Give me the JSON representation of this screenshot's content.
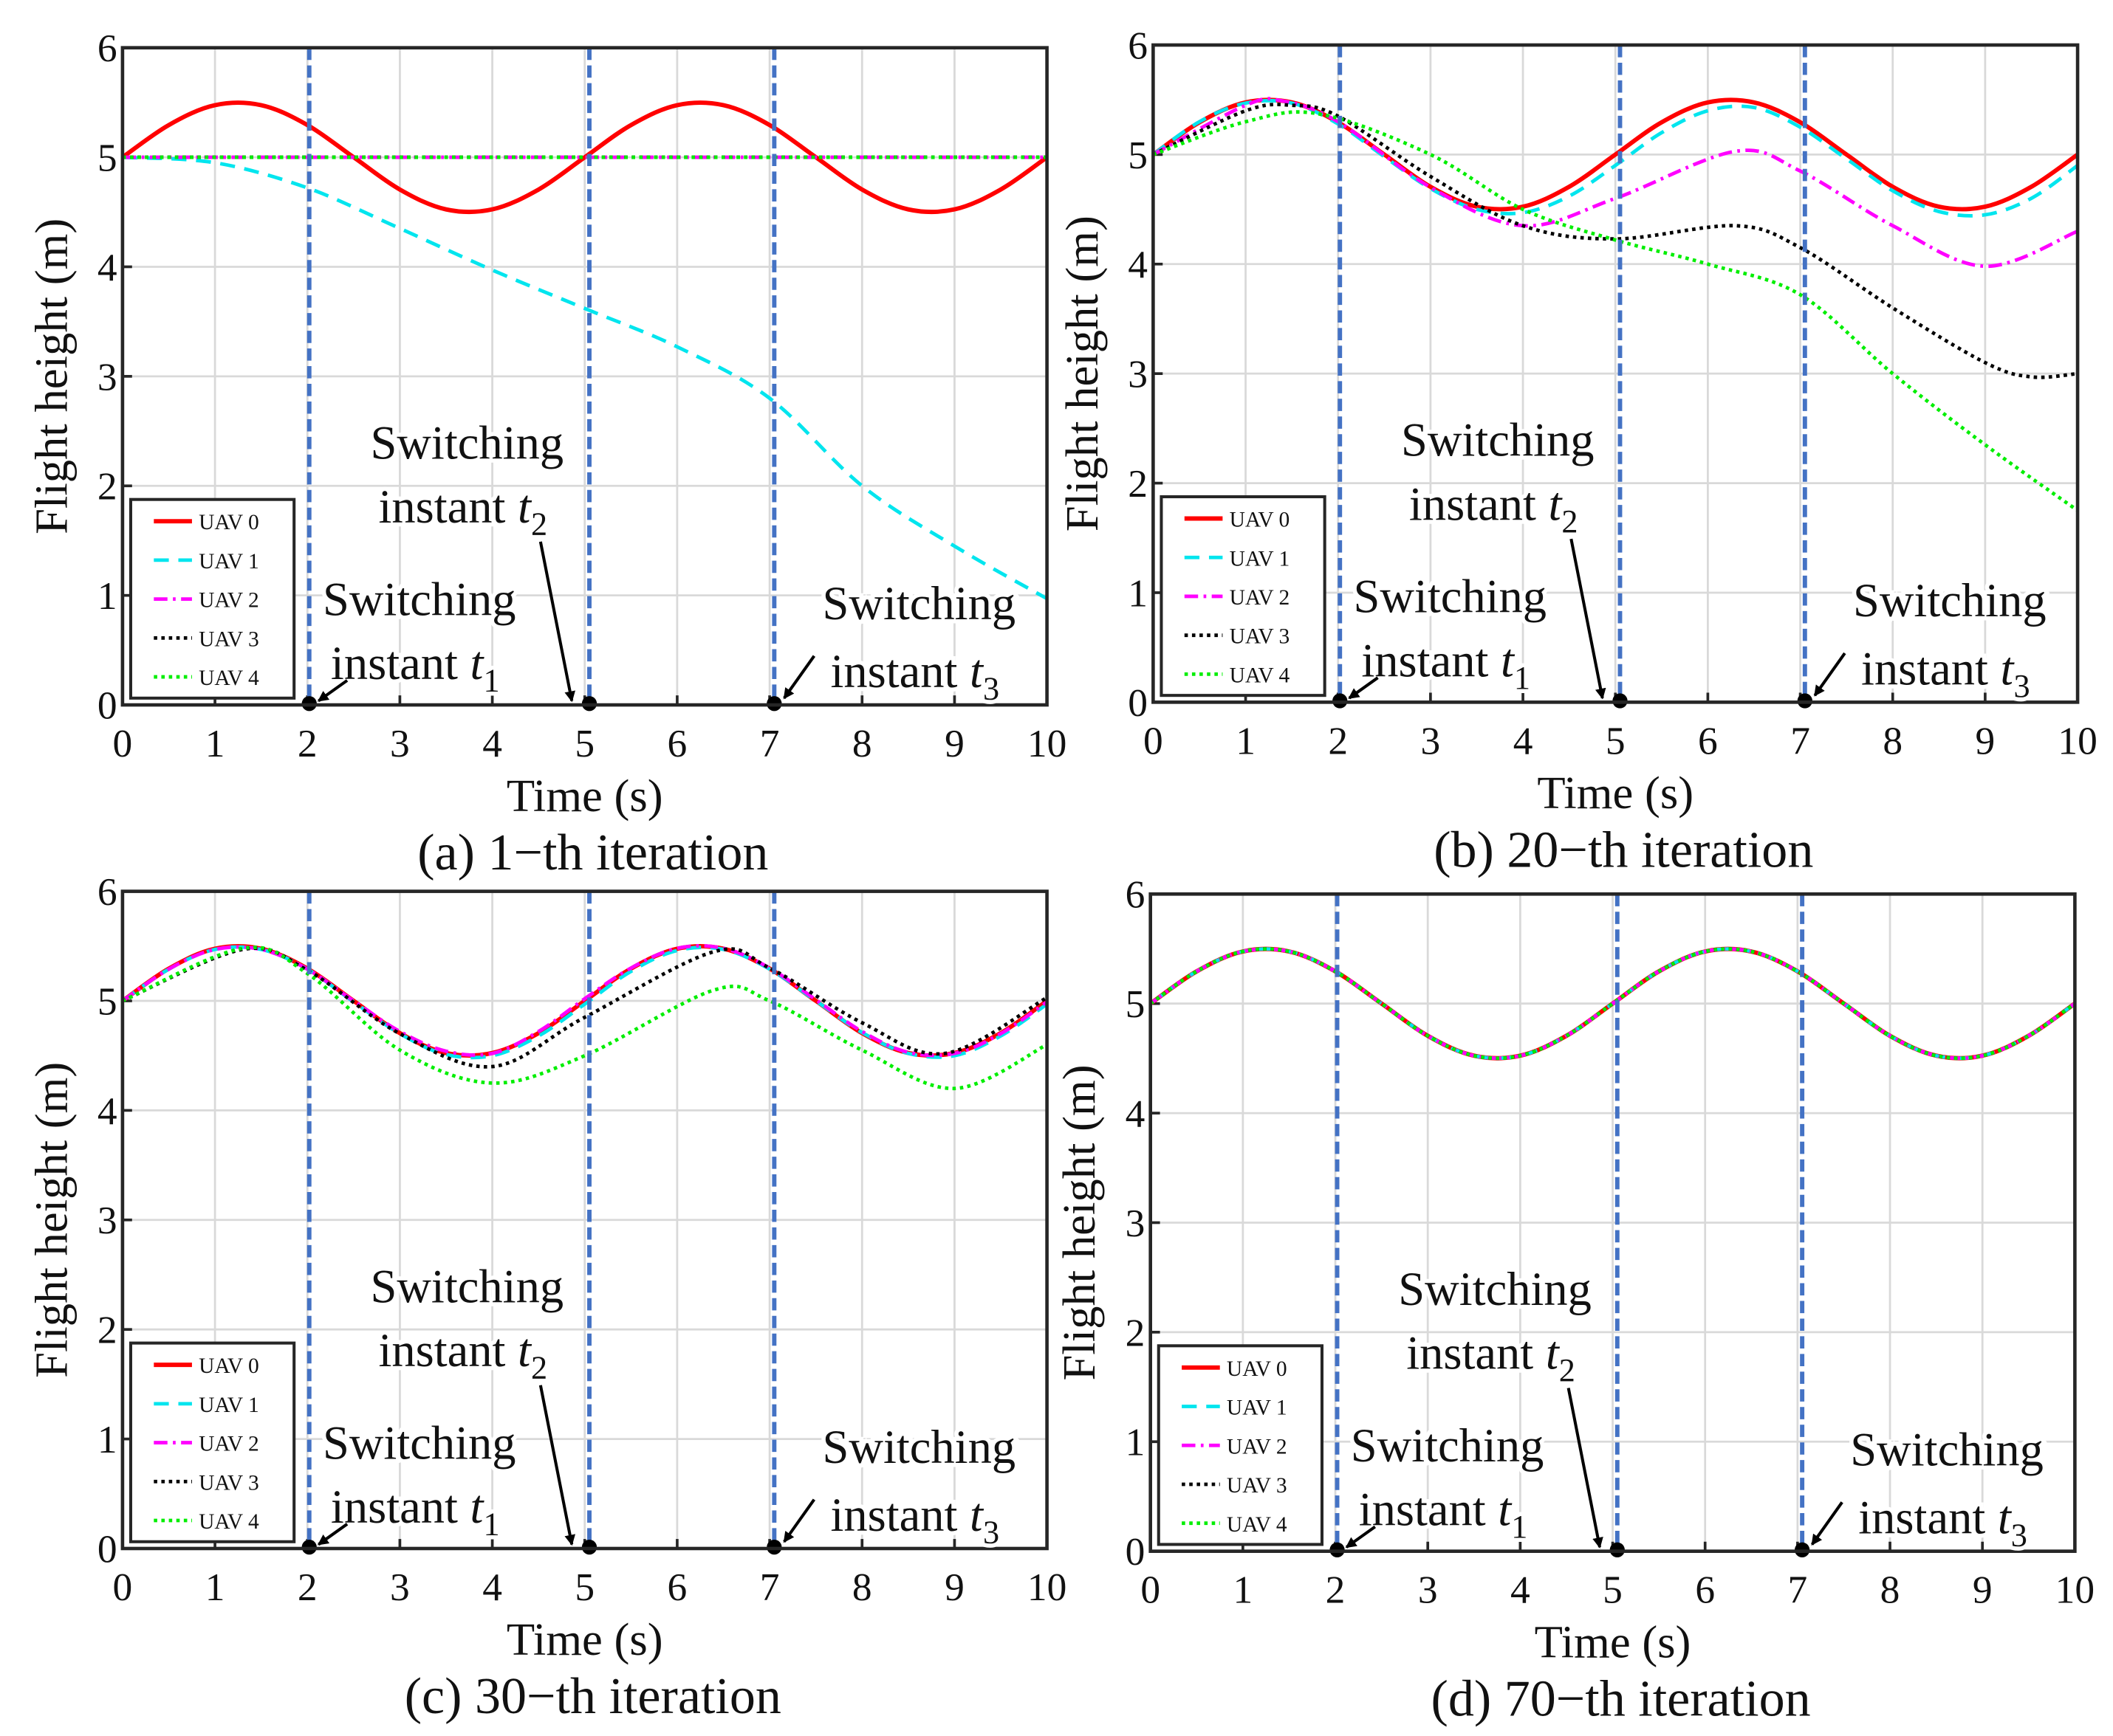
{
  "chart_data": [
    {
      "type": "line",
      "caption": "(a) 1−th iteration",
      "xlabel": "Time (s)",
      "ylabel": "Flight height (m)",
      "xlim": [
        0,
        10
      ],
      "ylim": [
        0,
        6
      ],
      "xticks": [
        "0",
        "1",
        "2",
        "3",
        "4",
        "5",
        "6",
        "7",
        "8",
        "9",
        "10"
      ],
      "yticks": [
        "0",
        "1",
        "2",
        "3",
        "4",
        "5",
        "6"
      ],
      "grid": true,
      "legend": "bottom-left",
      "switching_instants": [
        2.02,
        5.05,
        7.05
      ],
      "annotations": [
        {
          "line1": "Switching",
          "line2": "instant",
          "sym": "t",
          "sub": "1"
        },
        {
          "line1": "Switching",
          "line2": "instant",
          "sym": "t",
          "sub": "2"
        },
        {
          "line1": "Switching",
          "line2": "instant",
          "sym": "t",
          "sub": "3"
        }
      ],
      "series": [
        {
          "name": "UAV 0",
          "x": [
            0,
            0.5,
            1,
            1.5,
            2,
            2.5,
            3,
            3.5,
            4,
            4.5,
            5,
            5.5,
            6,
            6.5,
            7,
            7.5,
            8,
            8.5,
            9,
            9.5,
            10
          ],
          "y": [
            5,
            5.294,
            5.476,
            5.476,
            5.294,
            5,
            4.706,
            4.524,
            4.524,
            4.706,
            5,
            5.294,
            5.476,
            5.476,
            5.294,
            5,
            4.706,
            4.524,
            4.524,
            4.706,
            5
          ]
        },
        {
          "name": "UAV 1",
          "x": [
            0,
            1,
            2,
            3,
            4,
            5,
            6,
            7,
            8,
            9,
            10
          ],
          "y": [
            5,
            4.95,
            4.72,
            4.35,
            3.97,
            3.62,
            3.27,
            2.8,
            2.0,
            1.45,
            0.97
          ]
        },
        {
          "name": "UAV 2",
          "x": [
            0,
            10
          ],
          "y": [
            5,
            5
          ]
        },
        {
          "name": "UAV 3",
          "x": [
            0,
            10
          ],
          "y": [
            5,
            5
          ]
        },
        {
          "name": "UAV 4",
          "x": [
            0,
            10
          ],
          "y": [
            5,
            5
          ]
        }
      ]
    },
    {
      "type": "line",
      "caption": "(b) 20−th iteration",
      "xlabel": "Time (s)",
      "ylabel": "Flight height (m)",
      "xlim": [
        0,
        10
      ],
      "ylim": [
        0,
        6
      ],
      "xticks": [
        "0",
        "1",
        "2",
        "3",
        "4",
        "5",
        "6",
        "7",
        "8",
        "9",
        "10"
      ],
      "yticks": [
        "0",
        "1",
        "2",
        "3",
        "4",
        "5",
        "6"
      ],
      "grid": true,
      "legend": "bottom-left",
      "switching_instants": [
        2.02,
        5.05,
        7.05
      ],
      "annotations": [
        {
          "line1": "Switching",
          "line2": "instant",
          "sym": "t",
          "sub": "1"
        },
        {
          "line1": "Switching",
          "line2": "instant",
          "sym": "t",
          "sub": "2"
        },
        {
          "line1": "Switching",
          "line2": "instant",
          "sym": "t",
          "sub": "3"
        }
      ],
      "series": [
        {
          "name": "UAV 0",
          "x": [
            0,
            0.5,
            1,
            1.5,
            2,
            2.5,
            3,
            3.5,
            4,
            4.5,
            5,
            5.5,
            6,
            6.5,
            7,
            7.5,
            8,
            8.5,
            9,
            9.5,
            10
          ],
          "y": [
            5,
            5.294,
            5.476,
            5.476,
            5.294,
            5,
            4.706,
            4.524,
            4.524,
            4.706,
            5,
            5.294,
            5.476,
            5.476,
            5.294,
            5,
            4.706,
            4.524,
            4.524,
            4.706,
            5
          ]
        },
        {
          "name": "UAV 1",
          "x": [
            0,
            0.5,
            1,
            1.5,
            2,
            2.5,
            3,
            3.5,
            4,
            4.5,
            5,
            5.5,
            6,
            6.5,
            7,
            7.5,
            8,
            8.5,
            9,
            9.5,
            10
          ],
          "y": [
            5,
            5.3,
            5.47,
            5.47,
            5.28,
            4.98,
            4.69,
            4.5,
            4.47,
            4.62,
            4.9,
            5.2,
            5.4,
            5.43,
            5.25,
            4.96,
            4.67,
            4.48,
            4.45,
            4.6,
            4.9
          ]
        },
        {
          "name": "UAV 2",
          "x": [
            0,
            1,
            1.4,
            2,
            3,
            4,
            5,
            6.3,
            7,
            8,
            9,
            10
          ],
          "y": [
            5,
            5.45,
            5.49,
            5.3,
            4.7,
            4.35,
            4.6,
            5.03,
            4.85,
            4.35,
            3.98,
            4.3
          ]
        },
        {
          "name": "UAV 3",
          "x": [
            0,
            1,
            1.5,
            2,
            3,
            4,
            5,
            6.3,
            7,
            8,
            9,
            9.5,
            10
          ],
          "y": [
            5,
            5.4,
            5.45,
            5.35,
            4.8,
            4.35,
            4.23,
            4.35,
            4.15,
            3.6,
            3.1,
            2.97,
            3.0
          ]
        },
        {
          "name": "UAV 4",
          "x": [
            0,
            1,
            1.8,
            3,
            4,
            5,
            6,
            7,
            8,
            9,
            10
          ],
          "y": [
            5,
            5.3,
            5.37,
            5.0,
            4.5,
            4.22,
            4.0,
            3.72,
            3.0,
            2.35,
            1.75
          ]
        }
      ]
    },
    {
      "type": "line",
      "caption": "(c) 30−th iteration",
      "xlabel": "Time (s)",
      "ylabel": "Flight height (m)",
      "xlim": [
        0,
        10
      ],
      "ylim": [
        0,
        6
      ],
      "xticks": [
        "0",
        "1",
        "2",
        "3",
        "4",
        "5",
        "6",
        "7",
        "8",
        "9",
        "10"
      ],
      "yticks": [
        "0",
        "1",
        "2",
        "3",
        "4",
        "5",
        "6"
      ],
      "grid": true,
      "legend": "bottom-left",
      "switching_instants": [
        2.02,
        5.05,
        7.05
      ],
      "annotations": [
        {
          "line1": "Switching",
          "line2": "instant",
          "sym": "t",
          "sub": "1"
        },
        {
          "line1": "Switching",
          "line2": "instant",
          "sym": "t",
          "sub": "2"
        },
        {
          "line1": "Switching",
          "line2": "instant",
          "sym": "t",
          "sub": "3"
        }
      ],
      "series": [
        {
          "name": "UAV 0",
          "x": [
            0,
            0.5,
            1,
            1.5,
            2,
            2.5,
            3,
            3.5,
            4,
            4.5,
            5,
            5.5,
            6,
            6.5,
            7,
            7.5,
            8,
            8.5,
            9,
            9.5,
            10
          ],
          "y": [
            5,
            5.294,
            5.476,
            5.476,
            5.294,
            5,
            4.706,
            4.524,
            4.524,
            4.706,
            5,
            5.294,
            5.476,
            5.476,
            5.294,
            5,
            4.706,
            4.524,
            4.524,
            4.706,
            5
          ]
        },
        {
          "name": "UAV 1",
          "x": [
            0,
            0.5,
            1,
            1.5,
            2,
            2.5,
            3,
            3.5,
            4,
            4.5,
            5,
            5.5,
            6,
            6.5,
            7,
            7.5,
            8,
            8.5,
            9,
            9.5,
            10
          ],
          "y": [
            5,
            5.29,
            5.47,
            5.47,
            5.29,
            4.99,
            4.7,
            4.51,
            4.5,
            4.68,
            4.97,
            5.27,
            5.46,
            5.47,
            5.29,
            5,
            4.71,
            4.52,
            4.5,
            4.68,
            4.97
          ]
        },
        {
          "name": "UAV 2",
          "x": [
            0,
            0.5,
            1,
            1.5,
            2,
            2.5,
            3,
            3.5,
            4,
            4.5,
            5,
            5.5,
            6,
            6.5,
            7,
            7.5,
            8,
            8.5,
            9,
            9.5,
            10
          ],
          "y": [
            5,
            5.29,
            5.47,
            5.47,
            5.29,
            5,
            4.72,
            4.54,
            4.52,
            4.72,
            5.02,
            5.3,
            5.48,
            5.48,
            5.3,
            5.01,
            4.72,
            4.53,
            4.52,
            4.7,
            4.99
          ]
        },
        {
          "name": "UAV 3",
          "x": [
            0,
            1.3,
            2,
            3,
            4,
            5,
            6.4,
            7,
            8,
            8.9,
            10
          ],
          "y": [
            5,
            5.47,
            5.28,
            4.7,
            4.4,
            4.85,
            5.45,
            5.3,
            4.8,
            4.52,
            5.03
          ]
        },
        {
          "name": "UAV 4",
          "x": [
            0,
            1.3,
            2,
            3,
            4,
            5,
            6.4,
            7,
            8,
            9,
            10
          ],
          "y": [
            5,
            5.48,
            5.25,
            4.55,
            4.25,
            4.5,
            5.1,
            5.0,
            4.55,
            4.2,
            4.6
          ]
        }
      ]
    },
    {
      "type": "line",
      "caption": "(d) 70−th iteration",
      "xlabel": "Time (s)",
      "ylabel": "Flight height (m)",
      "xlim": [
        0,
        10
      ],
      "ylim": [
        0,
        6
      ],
      "xticks": [
        "0",
        "1",
        "2",
        "3",
        "4",
        "5",
        "6",
        "7",
        "8",
        "9",
        "10"
      ],
      "yticks": [
        "0",
        "1",
        "2",
        "3",
        "4",
        "5",
        "6"
      ],
      "grid": true,
      "legend": "bottom-left",
      "switching_instants": [
        2.02,
        5.05,
        7.05
      ],
      "annotations": [
        {
          "line1": "Switching",
          "line2": "instant",
          "sym": "t",
          "sub": "1"
        },
        {
          "line1": "Switching",
          "line2": "instant",
          "sym": "t",
          "sub": "2"
        },
        {
          "line1": "Switching",
          "line2": "instant",
          "sym": "t",
          "sub": "3"
        }
      ],
      "series": [
        {
          "name": "UAV 0",
          "x": [
            0,
            0.5,
            1,
            1.5,
            2,
            2.5,
            3,
            3.5,
            4,
            4.5,
            5,
            5.5,
            6,
            6.5,
            7,
            7.5,
            8,
            8.5,
            9,
            9.5,
            10
          ],
          "y": [
            5,
            5.294,
            5.476,
            5.476,
            5.294,
            5,
            4.706,
            4.524,
            4.524,
            4.706,
            5,
            5.294,
            5.476,
            5.476,
            5.294,
            5,
            4.706,
            4.524,
            4.524,
            4.706,
            5
          ]
        },
        {
          "name": "UAV 1",
          "x": [
            0,
            0.5,
            1,
            1.5,
            2,
            2.5,
            3,
            3.5,
            4,
            4.5,
            5,
            5.5,
            6,
            6.5,
            7,
            7.5,
            8,
            8.5,
            9,
            9.5,
            10
          ],
          "y": [
            5,
            5.294,
            5.476,
            5.476,
            5.294,
            5,
            4.706,
            4.524,
            4.524,
            4.706,
            5,
            5.294,
            5.476,
            5.476,
            5.294,
            5,
            4.706,
            4.524,
            4.524,
            4.706,
            5
          ]
        },
        {
          "name": "UAV 2",
          "x": [
            0,
            0.5,
            1,
            1.5,
            2,
            2.5,
            3,
            3.5,
            4,
            4.5,
            5,
            5.5,
            6,
            6.5,
            7,
            7.5,
            8,
            8.5,
            9,
            9.5,
            10
          ],
          "y": [
            5,
            5.294,
            5.476,
            5.476,
            5.294,
            5,
            4.706,
            4.524,
            4.524,
            4.706,
            5,
            5.294,
            5.476,
            5.476,
            5.294,
            5,
            4.706,
            4.524,
            4.524,
            4.706,
            5
          ]
        },
        {
          "name": "UAV 3",
          "x": [
            0,
            0.5,
            1,
            1.5,
            2,
            2.5,
            3,
            3.5,
            4,
            4.5,
            5,
            5.5,
            6,
            6.5,
            7,
            7.5,
            8,
            8.5,
            9,
            9.5,
            10
          ],
          "y": [
            5,
            5.294,
            5.476,
            5.476,
            5.294,
            5,
            4.706,
            4.524,
            4.524,
            4.706,
            5,
            5.294,
            5.476,
            5.476,
            5.294,
            5,
            4.706,
            4.524,
            4.524,
            4.706,
            5
          ]
        },
        {
          "name": "UAV 4",
          "x": [
            0,
            0.5,
            1,
            1.5,
            2,
            2.5,
            3,
            3.5,
            4,
            4.5,
            5,
            5.5,
            6,
            6.5,
            7,
            7.5,
            8,
            8.5,
            9,
            9.5,
            10
          ],
          "y": [
            5,
            5.294,
            5.476,
            5.476,
            5.294,
            5,
            4.706,
            4.524,
            4.524,
            4.706,
            5,
            5.294,
            5.476,
            5.476,
            5.294,
            5,
            4.706,
            4.524,
            4.524,
            4.706,
            5
          ]
        }
      ]
    }
  ],
  "colors": {
    "UAV 0": "#ff0000",
    "UAV 1": "#00e5ee",
    "UAV 2": "#ff00ff",
    "UAV 3": "#000000",
    "UAV 4": "#00ee00",
    "switch_line": "#4472c4",
    "grid": "#d9d9d9"
  }
}
